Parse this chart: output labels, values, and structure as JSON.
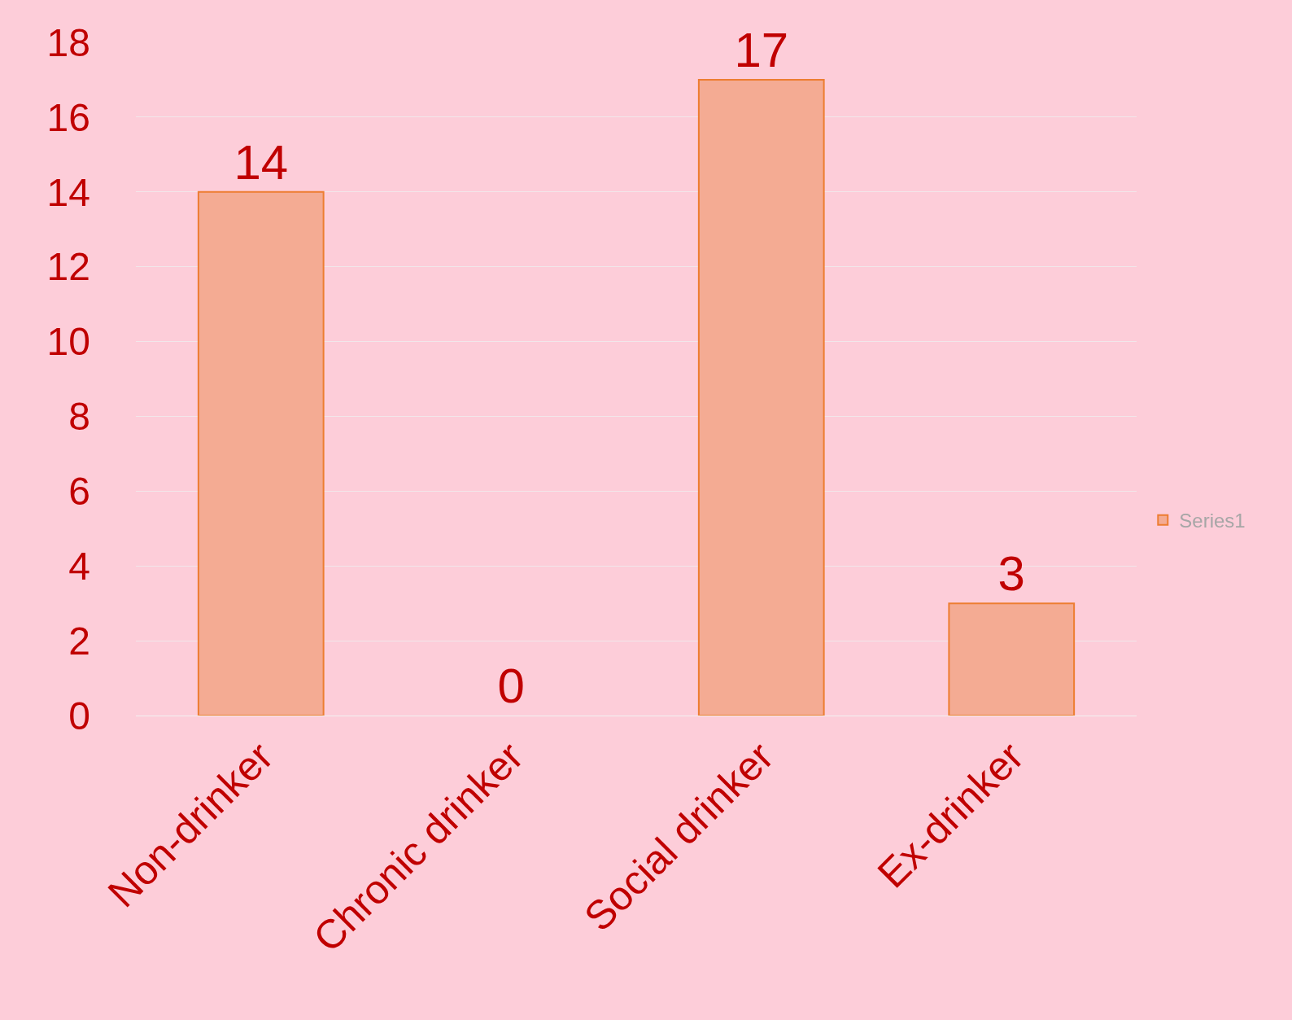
{
  "chart_data": {
    "type": "bar",
    "categories": [
      "Non-drinker",
      "Chronic drinker",
      "Social drinker",
      "Ex-drinker"
    ],
    "series": [
      {
        "name": "Series1",
        "color": "#f4ab93",
        "values": [
          14,
          0,
          17,
          3
        ]
      }
    ],
    "ylim": [
      0,
      18
    ],
    "yticks": [
      0,
      2,
      4,
      6,
      8,
      10,
      12,
      14,
      16,
      18
    ],
    "grid": "y",
    "data_labels": true,
    "legend": "right"
  }
}
